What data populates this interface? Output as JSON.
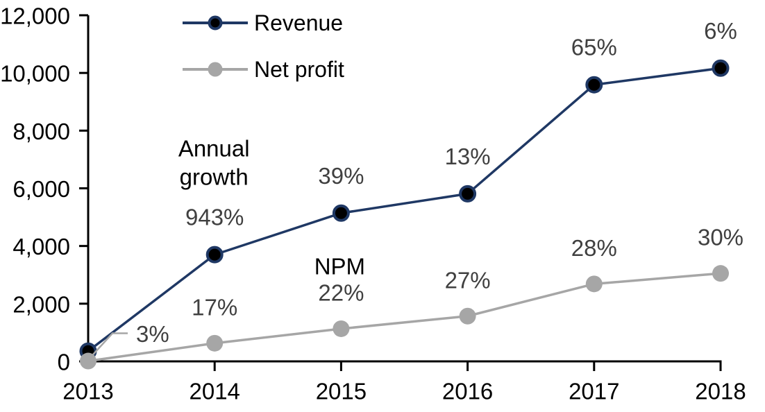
{
  "chart_data": {
    "type": "line",
    "title": "",
    "categories": [
      "2013",
      "2014",
      "2015",
      "2016",
      "2017",
      "2018"
    ],
    "series": [
      {
        "name": "Revenue",
        "values": [
          355,
          3700,
          5140,
          5810,
          9590,
          10165
        ],
        "line_color": "#1f3864",
        "marker_fill": "#000000",
        "marker_ring": "#1f3864"
      },
      {
        "name": "Net profit",
        "values": [
          11,
          629,
          1131,
          1569,
          2685,
          3050
        ],
        "line_color": "#a6a6a6",
        "marker_fill": "#a6a6a6"
      }
    ],
    "y_axis": {
      "min": 0,
      "max": 12000,
      "step": 2000,
      "tick_labels": [
        "0",
        "2,000",
        "4,000",
        "6,000",
        "8,000",
        "10,000",
        "12,000"
      ]
    },
    "x_axis": {
      "tick_labels": [
        "2013",
        "2014",
        "2015",
        "2016",
        "2017",
        "2018"
      ]
    },
    "annotations": {
      "annual_growth": {
        "label": "Annual growth",
        "label_lines": [
          "Annual",
          "growth"
        ],
        "values": [
          null,
          "943%",
          "39%",
          "13%",
          "65%",
          "6%"
        ]
      },
      "npm": {
        "label": "NPM",
        "values": [
          "3%",
          "17%",
          "22%",
          "27%",
          "28%",
          "30%"
        ],
        "first_value_has_callout": true
      }
    },
    "legend": {
      "position": "inside-top-left",
      "entries": [
        "Revenue",
        "Net profit"
      ]
    },
    "grid": false,
    "colors": {
      "revenue": "#1f3864",
      "net_profit": "#a6a6a6",
      "annotation_text": "#404040",
      "label_text": "#000000",
      "axis": "#000000",
      "background": "#ffffff"
    }
  }
}
